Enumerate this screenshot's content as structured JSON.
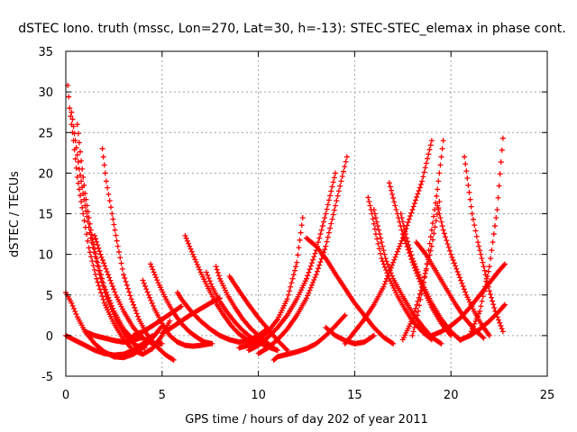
{
  "chart_data": {
    "type": "scatter",
    "title": "dSTEC Iono. truth (mssc, Lon=270, Lat=30, h=-13): STEC-STEC_elemax in phase cont.",
    "xlabel": "GPS time / hours of day 202 of year 2011",
    "ylabel": "dSTEC  / TECUs",
    "xlim": [
      0,
      25
    ],
    "ylim": [
      -5,
      35
    ],
    "xticks": [
      0,
      5,
      10,
      15,
      20,
      25
    ],
    "yticks": [
      -5,
      0,
      5,
      10,
      15,
      20,
      25,
      30,
      35
    ],
    "grid": true,
    "marker": "+",
    "color": "#ff0000",
    "series": [
      {
        "x": [
          0.1,
          0.2,
          0.4,
          0.6,
          0.9,
          1.2,
          1.6,
          2.0,
          2.5,
          3.0,
          3.5,
          4.0,
          4.5,
          5.0,
          5.4
        ],
        "y": [
          30.8,
          28.0,
          24.0,
          19.5,
          15.0,
          10.8,
          7.0,
          4.0,
          1.5,
          -0.5,
          -1.8,
          -2.3,
          -1.6,
          0.0,
          1.8
        ]
      },
      {
        "x": [
          0.3,
          0.5,
          0.7,
          1.0,
          1.3,
          1.7,
          2.1,
          2.6,
          3.1,
          3.6,
          4.1
        ],
        "y": [
          27.5,
          24.0,
          20.5,
          16.0,
          12.0,
          8.0,
          4.8,
          2.0,
          0.0,
          -1.2,
          -1.5
        ]
      },
      {
        "x": [
          0.6,
          0.8,
          1.0,
          1.3,
          1.6,
          2.0,
          2.5,
          3.0,
          3.5
        ],
        "y": [
          26.0,
          21.5,
          17.5,
          13.0,
          9.5,
          6.0,
          3.0,
          0.8,
          -0.5
        ]
      },
      {
        "x": [
          0.0,
          0.3,
          0.6,
          1.0,
          1.5,
          2.0,
          2.5,
          3.0,
          3.5,
          4.0,
          4.5,
          5.0
        ],
        "y": [
          5.3,
          4.0,
          2.3,
          0.5,
          -1.0,
          -2.0,
          -2.6,
          -2.7,
          -2.3,
          -1.5,
          -0.3,
          1.2
        ]
      },
      {
        "x": [
          0.0,
          0.5,
          1.0,
          1.5,
          2.0,
          2.5,
          3.0,
          3.5,
          4.0,
          4.5
        ],
        "y": [
          0.0,
          -0.6,
          -1.2,
          -1.8,
          -2.2,
          -2.4,
          -2.3,
          -1.8,
          -1.0,
          0.0
        ]
      },
      {
        "x": [
          1.9,
          2.1,
          2.4,
          2.7,
          3.0,
          3.4,
          3.8,
          4.2,
          4.7,
          5.2,
          5.6
        ],
        "y": [
          23.0,
          19.0,
          15.0,
          11.0,
          7.5,
          4.5,
          2.0,
          0.2,
          -1.3,
          -2.4,
          -3.0
        ]
      },
      {
        "x": [
          1.5,
          1.8,
          2.2,
          2.6,
          3.0,
          3.5,
          4.0,
          4.5,
          5.0
        ],
        "y": [
          12.3,
          10.0,
          7.5,
          5.0,
          3.0,
          1.0,
          -0.3,
          -1.0,
          -1.0
        ]
      },
      {
        "x": [
          1.0,
          1.5,
          2.0,
          2.5,
          3.0,
          3.5,
          4.0
        ],
        "y": [
          0.5,
          0.0,
          -0.3,
          -0.6,
          -0.8,
          -0.6,
          -0.2
        ]
      },
      {
        "x": [
          4.0,
          4.3,
          4.6,
          5.0,
          5.4,
          5.8,
          6.2,
          6.6,
          7.0,
          7.5
        ],
        "y": [
          6.8,
          5.0,
          3.3,
          1.5,
          0.0,
          -0.8,
          -1.2,
          -1.3,
          -1.2,
          -1.0
        ]
      },
      {
        "x": [
          4.4,
          4.8,
          5.2,
          5.6,
          6.0,
          6.4,
          6.8,
          7.2,
          7.6
        ],
        "y": [
          8.8,
          6.5,
          4.5,
          2.8,
          1.5,
          0.5,
          -0.2,
          -0.8,
          -1.0
        ]
      },
      {
        "x": [
          3.5,
          4.0,
          4.5,
          5.0,
          5.5,
          6.0
        ],
        "y": [
          0.0,
          0.5,
          1.2,
          2.0,
          2.8,
          3.6
        ]
      },
      {
        "x": [
          5.8,
          6.0,
          6.5,
          7.0,
          7.5,
          8.0,
          8.5,
          9.0,
          9.5,
          10.0,
          10.5
        ],
        "y": [
          5.3,
          4.5,
          3.0,
          1.8,
          0.8,
          0.0,
          -0.5,
          -0.8,
          -0.6,
          0.0,
          0.9
        ]
      },
      {
        "x": [
          6.2,
          6.6,
          7.0,
          7.4,
          7.8,
          8.2,
          8.6,
          9.0,
          9.4,
          9.8
        ],
        "y": [
          12.3,
          10.0,
          7.8,
          5.8,
          4.0,
          2.5,
          1.2,
          0.2,
          -0.5,
          -1.0
        ]
      },
      {
        "x": [
          5.0,
          5.5,
          6.0,
          6.5,
          7.0,
          7.5,
          8.0
        ],
        "y": [
          0.3,
          1.0,
          1.8,
          2.6,
          3.3,
          4.0,
          4.6
        ]
      },
      {
        "x": [
          7.3,
          7.6,
          8.0,
          8.4,
          8.8,
          9.2,
          9.6,
          10.0,
          10.5,
          11.0
        ],
        "y": [
          7.8,
          6.0,
          4.2,
          2.8,
          1.6,
          0.6,
          -0.2,
          -0.8,
          -1.4,
          -1.8
        ]
      },
      {
        "x": [
          7.8,
          8.0,
          8.4,
          8.8,
          9.2,
          9.6,
          10.0,
          10.4,
          10.8
        ],
        "y": [
          8.5,
          7.0,
          5.0,
          3.4,
          2.0,
          0.9,
          0.0,
          -0.8,
          -1.5
        ]
      },
      {
        "x": [
          8.5,
          9.0,
          9.5,
          10.0,
          10.5,
          11.0,
          11.5
        ],
        "y": [
          7.3,
          5.5,
          3.8,
          2.2,
          0.8,
          -0.6,
          -1.8
        ]
      },
      {
        "x": [
          9.0,
          9.5,
          10.0,
          10.5,
          11.0,
          11.5,
          12.0,
          12.3
        ],
        "y": [
          -1.5,
          -1.2,
          -0.5,
          0.5,
          2.0,
          4.5,
          9.0,
          14.5
        ]
      },
      {
        "x": [
          9.5,
          10.0,
          10.5,
          11.0,
          11.5,
          12.0,
          12.5,
          13.0,
          13.5,
          14.0
        ],
        "y": [
          -1.8,
          -1.2,
          -0.2,
          1.0,
          2.5,
          4.5,
          7.0,
          10.5,
          15.0,
          20.0
        ]
      },
      {
        "x": [
          10.0,
          10.5,
          11.0,
          11.5,
          12.0,
          12.5,
          13.0,
          13.5,
          14.0,
          14.6
        ],
        "y": [
          -2.2,
          -1.5,
          -0.5,
          0.8,
          2.5,
          4.6,
          7.5,
          11.0,
          16.0,
          22.0
        ]
      },
      {
        "x": [
          10.8,
          11.0,
          11.5,
          12.0,
          12.5,
          13.0,
          13.5,
          14.0,
          14.5
        ],
        "y": [
          -3.0,
          -2.6,
          -2.3,
          -2.0,
          -1.6,
          -1.0,
          0.0,
          1.2,
          2.5
        ]
      },
      {
        "x": [
          12.5,
          13.0,
          13.5,
          14.0,
          14.5,
          15.0,
          15.5,
          16.0,
          16.5,
          17.0
        ],
        "y": [
          12.0,
          11.0,
          9.5,
          7.6,
          5.8,
          4.0,
          2.5,
          1.0,
          -0.2,
          -1.0
        ]
      },
      {
        "x": [
          13.5,
          14.0,
          14.5,
          15.0,
          15.5,
          16.0
        ],
        "y": [
          1.0,
          0.0,
          -0.6,
          -1.0,
          -0.8,
          0.0
        ]
      },
      {
        "x": [
          14.5,
          15.0,
          15.5,
          16.0,
          16.5,
          17.0,
          17.5,
          18.0,
          18.5,
          19.0
        ],
        "y": [
          -1.0,
          0.5,
          2.0,
          3.8,
          6.0,
          9.0,
          12.0,
          15.5,
          19.0,
          24.0
        ]
      },
      {
        "x": [
          15.7,
          15.9,
          16.1,
          16.4,
          16.8,
          17.2,
          17.6,
          18.0,
          18.5,
          19.0
        ],
        "y": [
          17.0,
          15.0,
          12.5,
          9.5,
          7.0,
          5.0,
          3.3,
          1.8,
          0.5,
          -0.5
        ]
      },
      {
        "x": [
          16.0,
          16.3,
          16.6,
          17.0,
          17.5,
          18.0,
          18.5,
          19.0,
          19.5
        ],
        "y": [
          15.5,
          12.5,
          9.5,
          7.0,
          4.8,
          2.8,
          1.2,
          -0.2,
          -1.0
        ]
      },
      {
        "x": [
          16.8,
          17.1,
          17.5,
          18.0,
          18.5,
          19.0,
          19.5,
          20.0
        ],
        "y": [
          18.8,
          16.0,
          12.5,
          9.0,
          6.0,
          3.5,
          1.5,
          0.0
        ]
      },
      {
        "x": [
          17.4,
          17.7,
          18.0,
          18.5,
          19.0,
          19.5,
          20.0,
          20.5
        ],
        "y": [
          15.0,
          12.0,
          9.5,
          6.5,
          4.0,
          2.0,
          0.5,
          -0.6
        ]
      },
      {
        "x": [
          18.0,
          18.3,
          18.7,
          19.0,
          19.3,
          19.6
        ],
        "y": [
          0.0,
          3.0,
          8.0,
          13.0,
          18.0,
          24.0
        ]
      },
      {
        "x": [
          17.5,
          18.0,
          18.5,
          19.0,
          19.4
        ],
        "y": [
          -0.5,
          2.0,
          6.0,
          11.0,
          16.5
        ]
      },
      {
        "x": [
          18.2,
          18.7,
          19.2,
          19.7,
          20.2,
          20.7,
          21.2,
          21.7
        ],
        "y": [
          11.5,
          10.0,
          8.0,
          6.0,
          4.0,
          2.2,
          0.8,
          -0.3
        ]
      },
      {
        "x": [
          19.3,
          19.6,
          20.0,
          20.4,
          20.8,
          21.2,
          21.6,
          22.0
        ],
        "y": [
          16.0,
          13.0,
          10.0,
          7.5,
          5.0,
          3.0,
          1.3,
          0.0
        ]
      },
      {
        "x": [
          20.7,
          20.9,
          21.1,
          21.4,
          21.7,
          22.0,
          22.3,
          22.7
        ],
        "y": [
          22.0,
          18.5,
          15.0,
          11.5,
          8.5,
          5.5,
          3.0,
          0.5
        ]
      },
      {
        "x": [
          19.0,
          19.5,
          20.0,
          20.5,
          21.0,
          21.5,
          22.0,
          22.5,
          22.8
        ],
        "y": [
          0.0,
          0.5,
          1.2,
          2.2,
          3.5,
          5.0,
          6.5,
          8.0,
          8.8
        ]
      },
      {
        "x": [
          21.0,
          21.5,
          22.0,
          22.4,
          22.7
        ],
        "y": [
          0.2,
          3.0,
          8.5,
          15.5,
          24.3
        ]
      },
      {
        "x": [
          20.5,
          21.0,
          21.5,
          22.0,
          22.5,
          22.8
        ],
        "y": [
          -0.5,
          0.0,
          0.8,
          1.8,
          3.0,
          3.8
        ]
      }
    ]
  }
}
